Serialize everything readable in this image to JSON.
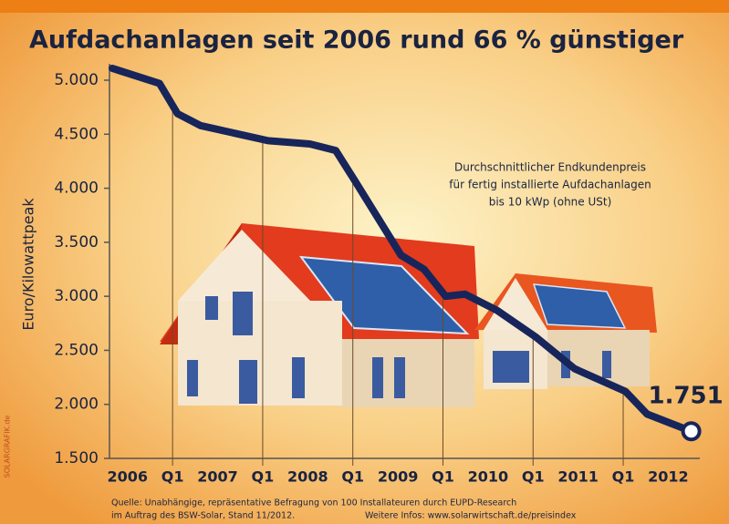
{
  "chart_data": {
    "type": "line",
    "title": "Aufdachanlagen seit 2006 rund 66 % günstiger",
    "y_label": "Euro/Kilowattpeak",
    "annotation": [
      "Durchschnittlicher Endkundenpreis",
      "für fertig installierte Aufdachanlagen",
      "bis 10 kWp (ohne USt)"
    ],
    "source": [
      "Quelle: Unabhängige, repräsentative Befragung von 100 Installateuren durch EUPD-Research",
      "im Auftrag des BSW-Solar, Stand 11/2012.",
      "Weitere Infos: www.solarwirtschaft.de/preisindex"
    ],
    "credit": "SOLARGRAFIK.de",
    "categories": [
      "2006",
      "Q1",
      "2007",
      "Q1",
      "2008",
      "Q1",
      "2009",
      "Q1",
      "2010",
      "Q1",
      "2011",
      "Q1",
      "2012"
    ],
    "xlim": [
      -0.4,
      12.7
    ],
    "ylim": [
      1500,
      5000
    ],
    "yticks": [
      {
        "value": 1500,
        "label": "1.500"
      },
      {
        "value": 2000,
        "label": "2.000"
      },
      {
        "value": 2500,
        "label": "2.500"
      },
      {
        "value": 3000,
        "label": "3.000"
      },
      {
        "value": 3500,
        "label": "3.500"
      },
      {
        "value": 4000,
        "label": "4.000"
      },
      {
        "value": 4500,
        "label": "4.500"
      },
      {
        "value": 5000,
        "label": "5.000"
      }
    ],
    "series": [
      {
        "name": "Durchschnittlicher Endkundenpreis",
        "color": "#17255a",
        "x": [
          -0.34,
          0.71,
          1.11,
          1.62,
          3.12,
          4.05,
          4.62,
          5.06,
          6.07,
          6.58,
          7.06,
          7.49,
          8.2,
          9.07,
          9.92,
          11.05,
          11.53,
          12.51
        ],
        "values": [
          5110,
          4970,
          4690,
          4580,
          4440,
          4410,
          4350,
          4060,
          3380,
          3250,
          3000,
          3020,
          2870,
          2620,
          2330,
          2120,
          1910,
          1751
        ],
        "value_labels": [
          null,
          null,
          null,
          null,
          null,
          null,
          null,
          null,
          null,
          null,
          null,
          null,
          null,
          null,
          null,
          null,
          null,
          "1.751"
        ]
      }
    ]
  }
}
